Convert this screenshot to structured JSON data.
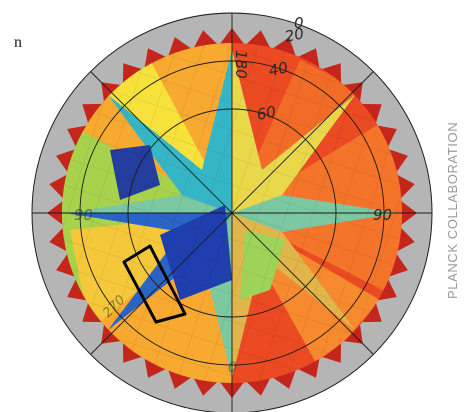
{
  "text_fragment": "n",
  "credit": "PLANCK COLLABORATION",
  "map": {
    "ring_labels": [
      "0",
      "20",
      "40",
      "60"
    ],
    "spoke_labels": [
      "180",
      "90",
      "90",
      "0",
      "270"
    ],
    "colors": {
      "ring": "#b5b5b5",
      "grid": "#1a1a1a",
      "highlight": "#000000"
    }
  }
}
